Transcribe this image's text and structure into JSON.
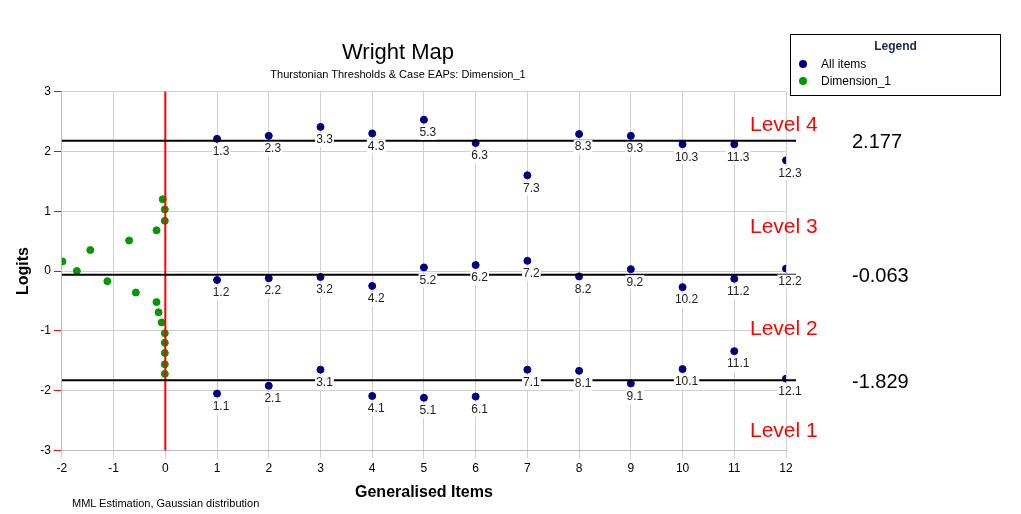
{
  "chart_data": {
    "type": "scatter",
    "title": "Wright Map",
    "subtitle": "Thurstonian Thresholds & Case EAPs: Dimension_1",
    "xlabel": "Generalised Items",
    "ylabel": "Logits",
    "legend_title": "Legend",
    "legend": "top right",
    "grid": true,
    "marker": "circle",
    "xlim": [
      -2,
      12
    ],
    "xticks": [
      -2,
      -1,
      0,
      1,
      2,
      3,
      4,
      5,
      6,
      7,
      8,
      9,
      10,
      11,
      12
    ],
    "ylim": [
      -3,
      3
    ],
    "yticks": [
      -3,
      -2,
      -1,
      0,
      1,
      2,
      3
    ],
    "series": [
      {
        "name": "All items",
        "color": "#000080",
        "x": [
          1,
          1,
          1,
          2,
          2,
          2,
          3,
          3,
          3,
          4,
          4,
          4,
          5,
          5,
          5,
          6,
          6,
          6,
          7,
          7,
          7,
          8,
          8,
          8,
          9,
          9,
          9,
          10,
          10,
          10,
          11,
          11,
          11,
          12,
          12,
          12
        ],
        "values": [
          -2.05,
          -0.15,
          2.21,
          -1.92,
          -0.12,
          2.26,
          -1.65,
          -0.1,
          2.41,
          -2.09,
          -0.25,
          2.3,
          -2.12,
          0.06,
          2.53,
          -2.1,
          0.1,
          2.14,
          -1.65,
          0.17,
          1.6,
          -1.67,
          -0.09,
          2.29,
          -1.88,
          0.03,
          2.26,
          -1.64,
          -0.27,
          2.12,
          -1.34,
          -0.13,
          2.12,
          -1.8,
          0.04,
          1.85
        ]
      },
      {
        "name": "Dimension_1",
        "color": "#009900",
        "x": [
          -1.99,
          -1.71,
          -1.45,
          -1.12,
          -0.7,
          -0.57,
          -0.17,
          -0.17,
          -0.13,
          -0.07,
          -0.05,
          -0.01,
          -0.01,
          -0.01,
          -0.01,
          -0.01,
          -0.01,
          -0.01
        ],
        "values": [
          0.16,
          0.0,
          0.35,
          -0.17,
          0.51,
          -0.36,
          0.68,
          -0.52,
          -0.69,
          -0.86,
          1.2,
          1.03,
          0.84,
          -1.04,
          -1.2,
          -1.37,
          -1.56,
          -1.72
        ]
      }
    ],
    "ref_lines": [
      {
        "axis": "x",
        "value": 0,
        "color": "#ff0000"
      },
      {
        "axis": "y",
        "value": 2.177,
        "label": "2.177",
        "color": "#000000"
      },
      {
        "axis": "y",
        "value": -0.063,
        "label": "-0.063",
        "color": "#000000"
      },
      {
        "axis": "y",
        "value": -1.829,
        "label": "-1.829",
        "color": "#000000"
      }
    ],
    "annotations": [
      "MML Estimation, Gaussian distribution",
      "Level 4",
      "Level 3",
      "Level 2",
      "Level 1",
      {
        "text": "1.1",
        "x": 1,
        "y": -2.05
      },
      {
        "text": "1.2",
        "x": 1,
        "y": -0.15
      },
      {
        "text": "1.3",
        "x": 1,
        "y": 2.21
      },
      {
        "text": "2.1",
        "x": 2,
        "y": -1.92
      },
      {
        "text": "2.2",
        "x": 2,
        "y": -0.12
      },
      {
        "text": "2.3",
        "x": 2,
        "y": 2.26
      },
      {
        "text": "3.1",
        "x": 3,
        "y": -1.65
      },
      {
        "text": "3.2",
        "x": 3,
        "y": -0.1
      },
      {
        "text": "3.3",
        "x": 3,
        "y": 2.41
      },
      {
        "text": "4.1",
        "x": 4,
        "y": -2.09
      },
      {
        "text": "4.2",
        "x": 4,
        "y": -0.25
      },
      {
        "text": "4.3",
        "x": 4,
        "y": 2.3
      },
      {
        "text": "5.1",
        "x": 5,
        "y": -2.12
      },
      {
        "text": "5.2",
        "x": 5,
        "y": 0.06
      },
      {
        "text": "5.3",
        "x": 5,
        "y": 2.53
      },
      {
        "text": "6.1",
        "x": 6,
        "y": -2.1
      },
      {
        "text": "6.2",
        "x": 6,
        "y": 0.1
      },
      {
        "text": "6.3",
        "x": 6,
        "y": 2.14
      },
      {
        "text": "7.1",
        "x": 7,
        "y": -1.65
      },
      {
        "text": "7.2",
        "x": 7,
        "y": 0.17
      },
      {
        "text": "7.3",
        "x": 7,
        "y": 1.6
      },
      {
        "text": "8.1",
        "x": 8,
        "y": -1.67
      },
      {
        "text": "8.2",
        "x": 8,
        "y": -0.09
      },
      {
        "text": "8.3",
        "x": 8,
        "y": 2.29
      },
      {
        "text": "9.1",
        "x": 9,
        "y": -1.88
      },
      {
        "text": "9.2",
        "x": 9,
        "y": 0.03
      },
      {
        "text": "9.3",
        "x": 9,
        "y": 2.26
      },
      {
        "text": "10.1",
        "x": 10,
        "y": -1.64
      },
      {
        "text": "10.2",
        "x": 10,
        "y": -0.27
      },
      {
        "text": "10.3",
        "x": 10,
        "y": 2.12
      },
      {
        "text": "11.1",
        "x": 11,
        "y": -1.34
      },
      {
        "text": "11.2",
        "x": 11,
        "y": -0.13
      },
      {
        "text": "11.3",
        "x": 11,
        "y": 2.12
      },
      {
        "text": "12.1",
        "x": 12,
        "y": -1.8
      },
      {
        "text": "12.2",
        "x": 12,
        "y": 0.04
      },
      {
        "text": "12.3",
        "x": 12,
        "y": 1.85
      }
    ]
  }
}
